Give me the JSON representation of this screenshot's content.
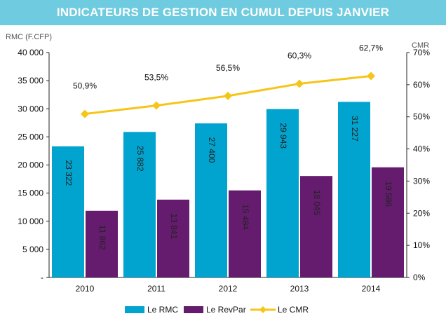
{
  "title": "INDICATEURS DE GESTION EN CUMUL DEPUIS JANVIER",
  "chart_data": {
    "type": "bar",
    "categories": [
      "2010",
      "2011",
      "2012",
      "2013",
      "2014"
    ],
    "series": [
      {
        "name": "Le RMC",
        "type": "bar",
        "axis": "left",
        "color": "#00a4cf",
        "values": [
          23322,
          25882,
          27400,
          29943,
          31227
        ],
        "labels": [
          "23 322",
          "25 882",
          "27 400",
          "29 943",
          "31 227"
        ]
      },
      {
        "name": "Le RevPar",
        "type": "bar",
        "axis": "left",
        "color": "#651c6e",
        "values": [
          11862,
          13841,
          15484,
          18045,
          19586
        ],
        "labels": [
          "11 862",
          "13 841",
          "15 484",
          "18 045",
          "19 586"
        ]
      },
      {
        "name": "Le CMR",
        "type": "line",
        "axis": "right",
        "color": "#f5c518",
        "values": [
          50.9,
          53.5,
          56.5,
          60.3,
          62.7
        ],
        "labels": [
          "50,9%",
          "53,5%",
          "56,5%",
          "60,3%",
          "62,7%"
        ]
      }
    ],
    "ylabel": "RMC (F.CFP)",
    "y2label": "CMR",
    "ylim": [
      0,
      40000
    ],
    "y2lim": [
      0,
      70
    ],
    "yticks": [
      0,
      5000,
      10000,
      15000,
      20000,
      25000,
      30000,
      35000,
      40000
    ],
    "ytick_labels": [
      "-",
      "5 000",
      "10 000",
      "15 000",
      "20 000",
      "25 000",
      "30 000",
      "35 000",
      "40 000"
    ],
    "y2ticks": [
      0,
      10,
      20,
      30,
      40,
      50,
      60,
      70
    ],
    "y2tick_labels": [
      "0%",
      "10%",
      "20%",
      "30%",
      "40%",
      "50%",
      "60%",
      "70%"
    ],
    "grid": false,
    "legend": "bottom-center"
  }
}
